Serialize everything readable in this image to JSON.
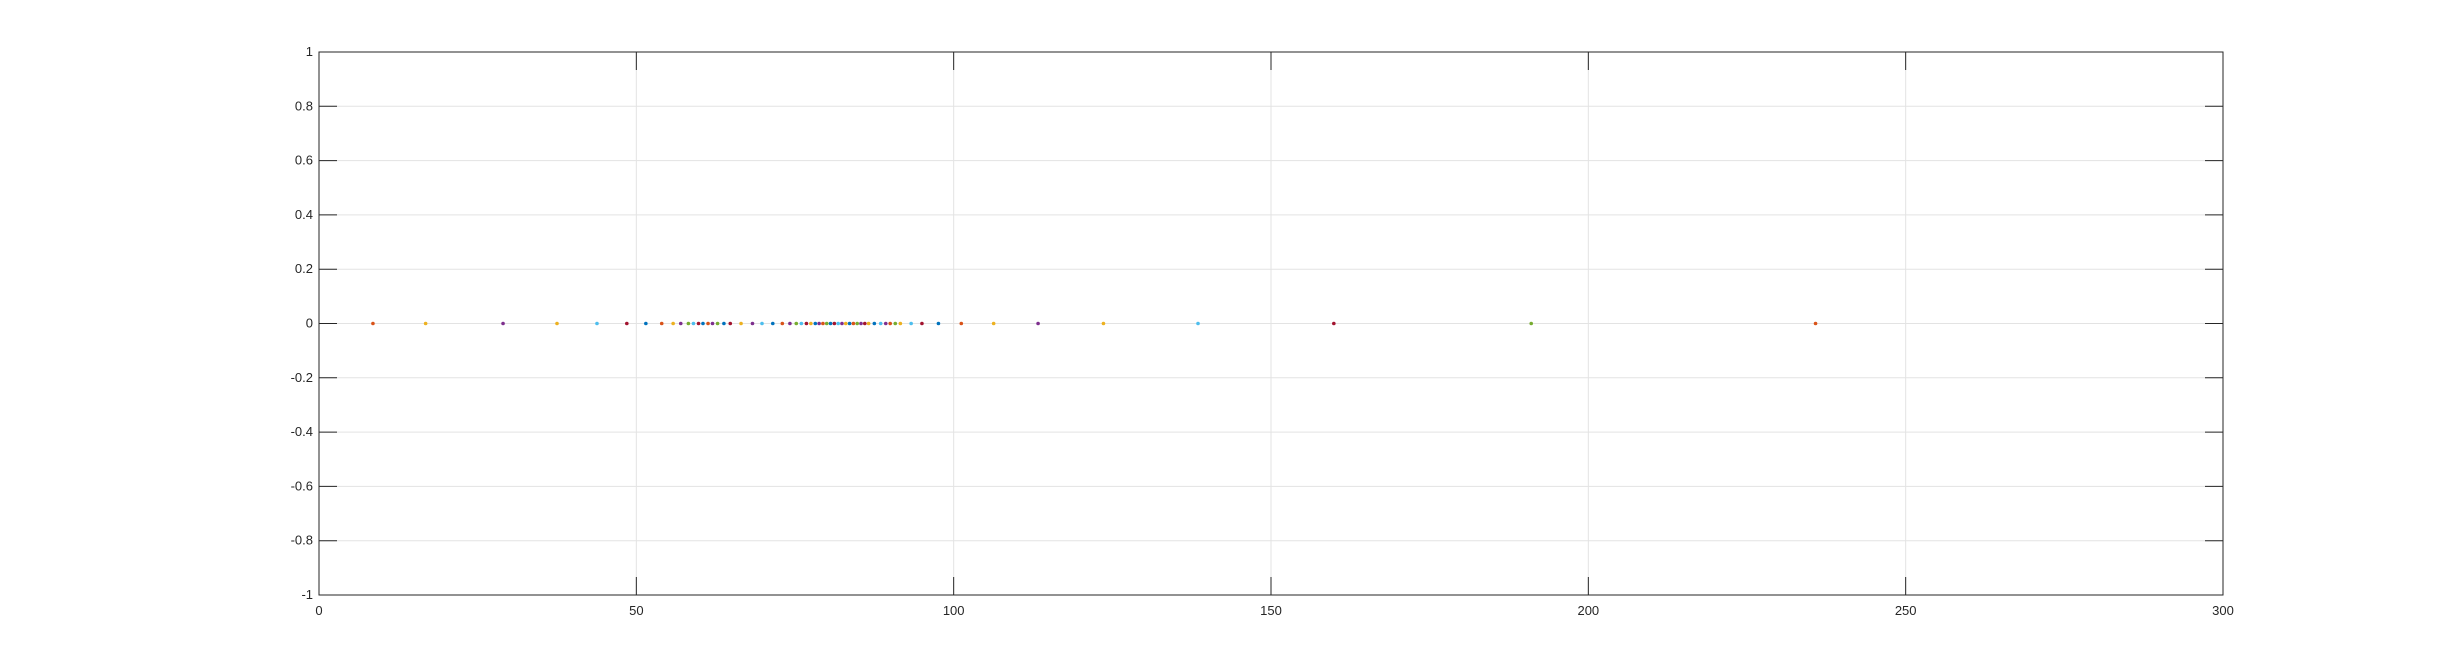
{
  "chart_data": {
    "type": "scatter",
    "title": "",
    "xlabel": "",
    "ylabel": "",
    "xlim": [
      0,
      300
    ],
    "ylim": [
      -1,
      1
    ],
    "grid": true,
    "x_ticks": [
      0,
      50,
      100,
      150,
      200,
      250,
      300
    ],
    "x_tick_labels": [
      "0",
      "50",
      "100",
      "150",
      "200",
      "250",
      "300"
    ],
    "y_ticks": [
      1,
      0.8,
      0.6,
      0.4,
      0.2,
      0,
      -0.2,
      -0.4,
      -0.6,
      -0.8,
      -1
    ],
    "y_tick_labels": [
      "1",
      "0.8",
      "0.6",
      "0.4",
      "0.2",
      "0",
      "-0.2",
      "-0.4",
      "-0.6",
      "-0.8",
      "-1"
    ],
    "colors": [
      "#0072BD",
      "#D95319",
      "#EDB120",
      "#7E2F8E",
      "#77AC30",
      "#4DBEEE",
      "#A2142F"
    ],
    "points": [
      {
        "x": 8.5,
        "y": 0,
        "color": "#D95319"
      },
      {
        "x": 16.8,
        "y": 0,
        "color": "#EDB120"
      },
      {
        "x": 29.0,
        "y": 0,
        "color": "#7E2F8E"
      },
      {
        "x": 37.5,
        "y": 0,
        "color": "#EDB120"
      },
      {
        "x": 43.8,
        "y": 0,
        "color": "#4DBEEE"
      },
      {
        "x": 48.5,
        "y": 0,
        "color": "#A2142F"
      },
      {
        "x": 51.5,
        "y": 0,
        "color": "#0072BD"
      },
      {
        "x": 54.0,
        "y": 0,
        "color": "#D95319"
      },
      {
        "x": 55.8,
        "y": 0,
        "color": "#EDB120"
      },
      {
        "x": 57.0,
        "y": 0,
        "color": "#7E2F8E"
      },
      {
        "x": 58.2,
        "y": 0,
        "color": "#77AC30"
      },
      {
        "x": 59.0,
        "y": 0,
        "color": "#4DBEEE"
      },
      {
        "x": 59.8,
        "y": 0,
        "color": "#A2142F"
      },
      {
        "x": 60.5,
        "y": 0,
        "color": "#0072BD"
      },
      {
        "x": 61.3,
        "y": 0,
        "color": "#D95319"
      },
      {
        "x": 62.0,
        "y": 0,
        "color": "#7E2F8E"
      },
      {
        "x": 62.8,
        "y": 0,
        "color": "#77AC30"
      },
      {
        "x": 63.8,
        "y": 0,
        "color": "#0072BD"
      },
      {
        "x": 64.8,
        "y": 0,
        "color": "#A2142F"
      },
      {
        "x": 66.5,
        "y": 0,
        "color": "#EDB120"
      },
      {
        "x": 68.3,
        "y": 0,
        "color": "#7E2F8E"
      },
      {
        "x": 69.8,
        "y": 0,
        "color": "#4DBEEE"
      },
      {
        "x": 71.5,
        "y": 0,
        "color": "#0072BD"
      },
      {
        "x": 73.0,
        "y": 0,
        "color": "#D95319"
      },
      {
        "x": 74.2,
        "y": 0,
        "color": "#7E2F8E"
      },
      {
        "x": 75.2,
        "y": 0,
        "color": "#77AC30"
      },
      {
        "x": 76.0,
        "y": 0,
        "color": "#4DBEEE"
      },
      {
        "x": 76.8,
        "y": 0,
        "color": "#A2142F"
      },
      {
        "x": 77.5,
        "y": 0,
        "color": "#EDB120"
      },
      {
        "x": 78.2,
        "y": 0,
        "color": "#0072BD"
      },
      {
        "x": 78.8,
        "y": 0,
        "color": "#7E2F8E"
      },
      {
        "x": 79.4,
        "y": 0,
        "color": "#D95319"
      },
      {
        "x": 80.0,
        "y": 0,
        "color": "#77AC30"
      },
      {
        "x": 80.6,
        "y": 0,
        "color": "#0072BD"
      },
      {
        "x": 81.2,
        "y": 0,
        "color": "#A2142F"
      },
      {
        "x": 81.8,
        "y": 0,
        "color": "#4DBEEE"
      },
      {
        "x": 82.4,
        "y": 0,
        "color": "#7E2F8E"
      },
      {
        "x": 83.0,
        "y": 0,
        "color": "#EDB120"
      },
      {
        "x": 83.6,
        "y": 0,
        "color": "#0072BD"
      },
      {
        "x": 84.2,
        "y": 0,
        "color": "#D95319"
      },
      {
        "x": 84.8,
        "y": 0,
        "color": "#77AC30"
      },
      {
        "x": 85.4,
        "y": 0,
        "color": "#7E2F8E"
      },
      {
        "x": 86.0,
        "y": 0,
        "color": "#A2142F"
      },
      {
        "x": 86.6,
        "y": 0,
        "color": "#EDB120"
      },
      {
        "x": 87.5,
        "y": 0,
        "color": "#0072BD"
      },
      {
        "x": 88.5,
        "y": 0,
        "color": "#4DBEEE"
      },
      {
        "x": 89.3,
        "y": 0,
        "color": "#7E2F8E"
      },
      {
        "x": 90.0,
        "y": 0,
        "color": "#D95319"
      },
      {
        "x": 90.8,
        "y": 0,
        "color": "#77AC30"
      },
      {
        "x": 91.6,
        "y": 0,
        "color": "#EDB120"
      },
      {
        "x": 93.3,
        "y": 0,
        "color": "#4DBEEE"
      },
      {
        "x": 95.0,
        "y": 0,
        "color": "#A2142F"
      },
      {
        "x": 97.6,
        "y": 0,
        "color": "#0072BD"
      },
      {
        "x": 101.2,
        "y": 0,
        "color": "#D95319"
      },
      {
        "x": 106.3,
        "y": 0,
        "color": "#EDB120"
      },
      {
        "x": 113.3,
        "y": 0,
        "color": "#7E2F8E"
      },
      {
        "x": 123.6,
        "y": 0,
        "color": "#EDB120"
      },
      {
        "x": 138.5,
        "y": 0,
        "color": "#4DBEEE"
      },
      {
        "x": 159.9,
        "y": 0,
        "color": "#A2142F"
      },
      {
        "x": 191.0,
        "y": 0,
        "color": "#77AC30"
      },
      {
        "x": 235.8,
        "y": 0,
        "color": "#D95319"
      }
    ]
  }
}
